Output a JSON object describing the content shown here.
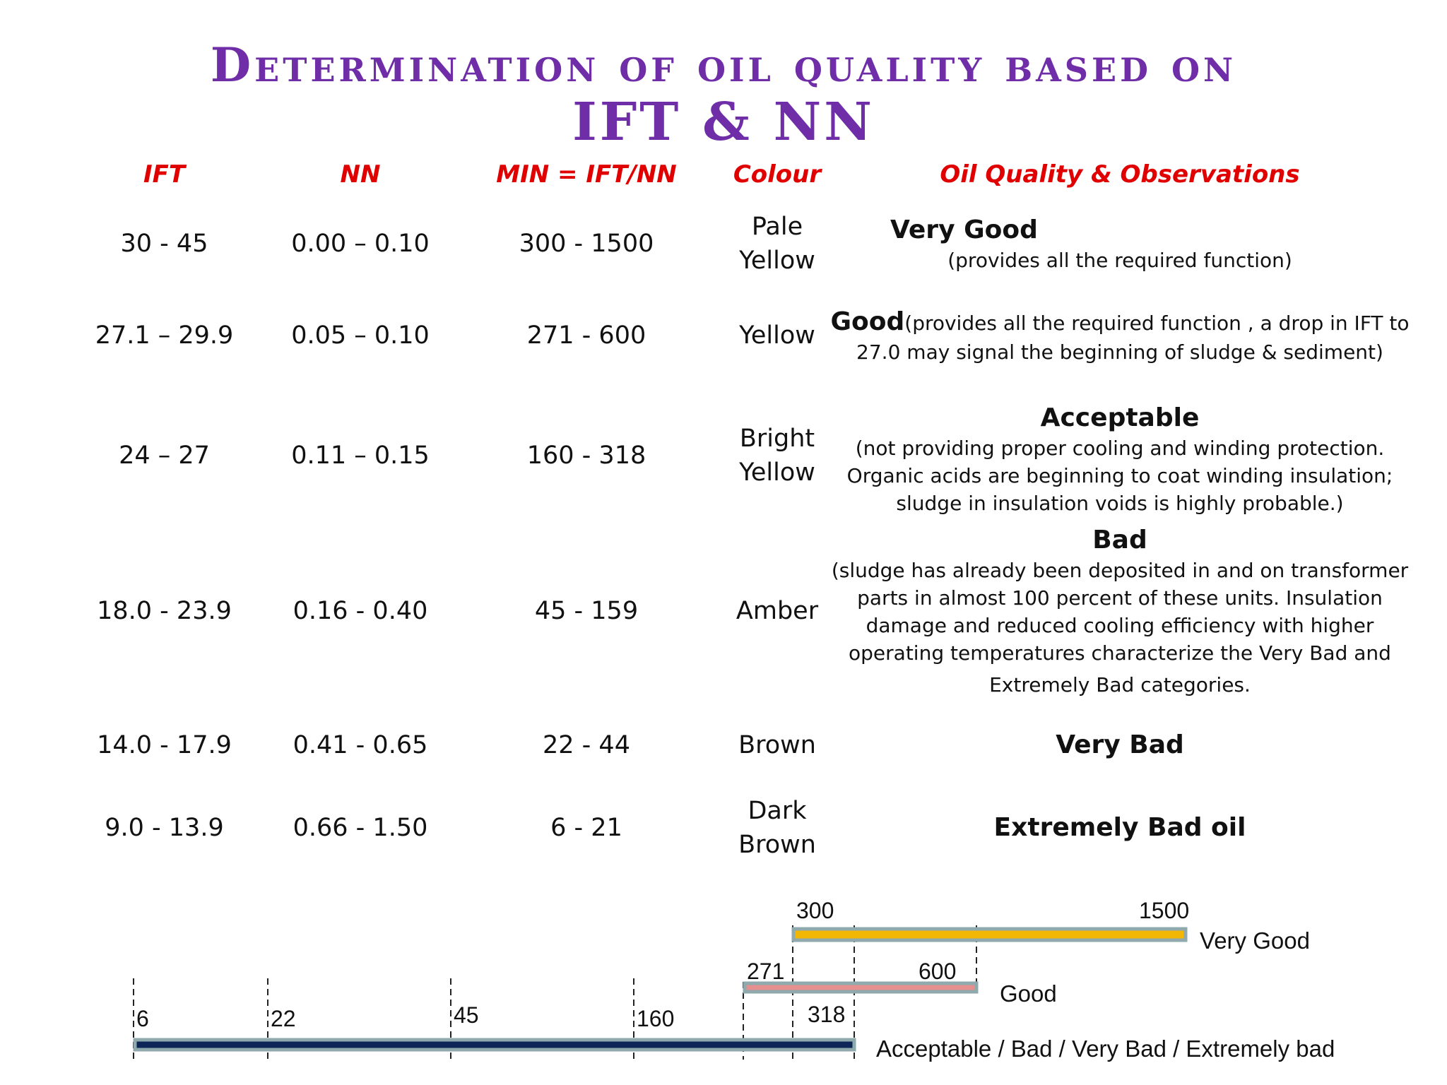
{
  "title": {
    "line1": "Determination of oil quality based on",
    "line2": "IFT & NN"
  },
  "headers": {
    "ift": "IFT",
    "nn": "NN",
    "min": "MIN = IFT/NN",
    "colour": "Colour",
    "observations": "Oil Quality & Observations"
  },
  "rows": [
    {
      "ift": "30 - 45",
      "nn": "0.00 – 0.10",
      "min": "300 - 1500",
      "colour_l1": "Pale",
      "colour_l2": "Yellow",
      "quality": "Very Good",
      "obs1": "(provides all the required function)"
    },
    {
      "ift": "27.1 – 29.9",
      "nn": "0.05 – 0.10",
      "min": "271 - 600",
      "colour_l1": "Yellow",
      "quality": "Good",
      "obs1": "(provides all the required function , a drop in IFT to",
      "obs2": "27.0 may signal the beginning of sludge & sediment)"
    },
    {
      "ift": "24 – 27",
      "nn": "0.11 – 0.15",
      "min": "160 - 318",
      "colour_l1": "Bright",
      "colour_l2": "Yellow",
      "quality": "Acceptable",
      "obs1": "(not providing proper cooling and winding protection.",
      "obs2": "Organic acids are beginning to coat winding insulation;",
      "obs3": "sludge in insulation voids is highly probable.)"
    },
    {
      "ift": "18.0 - 23.9",
      "nn": "0.16 - 0.40",
      "min": "45 - 159",
      "colour_l1": "Amber",
      "quality": "Bad",
      "obs1": "(sludge has already been deposited in and on transformer",
      "obs2": "parts in almost 100 percent of these units. Insulation",
      "obs3": "damage and reduced cooling efficiency with higher",
      "obs4": "operating temperatures characterize the Very Bad and",
      "obs5": "Extremely Bad categories."
    },
    {
      "ift": "14.0 - 17.9",
      "nn": "0.41 - 0.65",
      "min": "22 - 44",
      "colour_l1": "Brown",
      "quality": "Very Bad"
    },
    {
      "ift": "9.0 - 13.9",
      "nn": "0.66 - 1.50",
      "min": "6 - 21",
      "colour_l1": "Dark",
      "colour_l2": "Brown",
      "quality": "Extremely Bad oil"
    }
  ],
  "scale": {
    "bars": [
      {
        "start": 300,
        "end": 1500,
        "label": "Very Good",
        "color": "#f2b705",
        "border": "#8fa9ad"
      },
      {
        "start": 271,
        "end": 600,
        "label": "Good",
        "color": "#e58f8f",
        "border": "#8fa9ad"
      },
      {
        "start": 6,
        "end": 318,
        "label": "Acceptable / Bad / Very Bad / Extremely bad",
        "color": "#0d2657",
        "border": "#8fa9ad"
      }
    ],
    "ticks": [
      "6",
      "22",
      "45",
      "160",
      "271",
      "300",
      "318",
      "600",
      "1500"
    ]
  }
}
